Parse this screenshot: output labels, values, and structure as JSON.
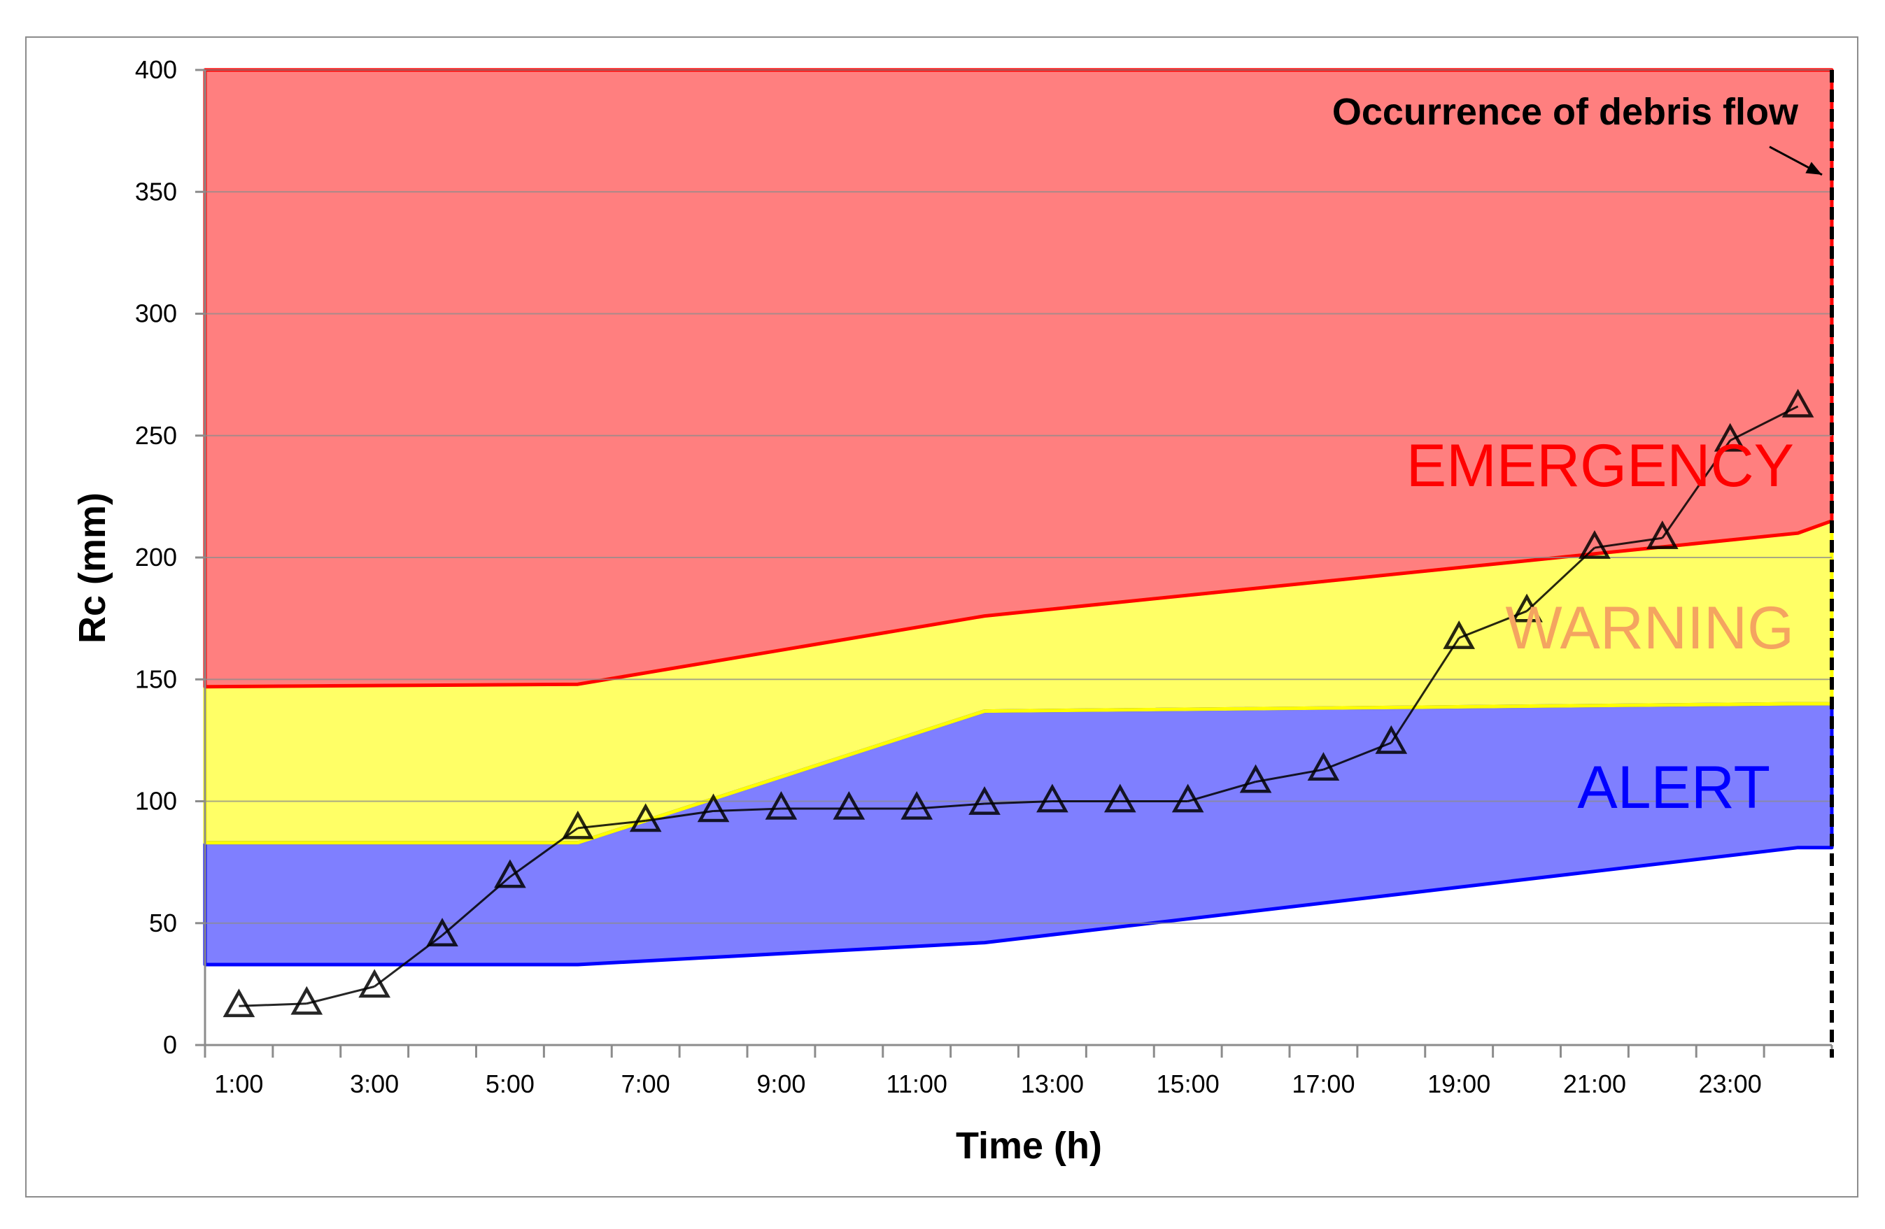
{
  "chart_data": {
    "type": "area",
    "title": "",
    "xlabel": "Time (h)",
    "ylabel": "Rc (mm)",
    "ylim": [
      0,
      400
    ],
    "yticks": [
      0,
      50,
      100,
      150,
      200,
      250,
      300,
      350,
      400
    ],
    "xlim": [
      0.5,
      24.5
    ],
    "xtick_labels": [
      "1:00",
      "3:00",
      "5:00",
      "7:00",
      "9:00",
      "11:00",
      "13:00",
      "15:00",
      "17:00",
      "19:00",
      "21:00",
      "23:00"
    ],
    "xtick_label_positions": [
      1,
      3,
      5,
      7,
      9,
      11,
      13,
      15,
      17,
      19,
      21,
      23
    ],
    "grid": true,
    "zones": [
      {
        "name": "ALERT",
        "fill": "#7f7fff",
        "edge": "#0000ff",
        "label_color": "#0000ff",
        "lower": {
          "x": [
            0.5,
            6,
            12,
            24,
            24.5
          ],
          "y": [
            33,
            33,
            42,
            81,
            81
          ]
        },
        "upper": {
          "x": [
            0.5,
            6,
            12,
            24,
            24.5
          ],
          "y": [
            83,
            83,
            137,
            140,
            140
          ]
        }
      },
      {
        "name": "WARNING",
        "fill": "#ffff66",
        "edge": "#ffff00",
        "label_color": "#f4a460",
        "lower": {
          "x": [
            0.5,
            6,
            12,
            24,
            24.5
          ],
          "y": [
            83,
            83,
            137,
            140,
            140
          ]
        },
        "upper": {
          "x": [
            0.5,
            6,
            12,
            24,
            24.5
          ],
          "y": [
            147,
            148,
            176,
            210,
            215
          ]
        }
      },
      {
        "name": "EMERGENCY",
        "fill": "#ff7f7f",
        "edge": "#ff0000",
        "label_color": "#ff0000",
        "lower": {
          "x": [
            0.5,
            6,
            12,
            24,
            24.5
          ],
          "y": [
            147,
            148,
            176,
            210,
            215
          ]
        },
        "upper": {
          "x": [
            0.5,
            24.5
          ],
          "y": [
            400,
            400
          ]
        }
      }
    ],
    "series": [
      {
        "name": "Rc",
        "marker": "triangle",
        "x": [
          1,
          2,
          3,
          4,
          5,
          6,
          7,
          8,
          9,
          10,
          11,
          12,
          13,
          14,
          15,
          16,
          17,
          18,
          19,
          20,
          21,
          22,
          23,
          24
        ],
        "values": [
          16,
          17,
          24,
          45,
          69,
          89,
          92,
          96,
          97,
          97,
          97,
          99,
          100,
          100,
          100,
          108,
          113,
          124,
          167,
          178,
          204,
          208,
          248,
          262
        ]
      }
    ],
    "annotations": [
      {
        "text": "Occurrence of debris flow",
        "points_to_x": 24.5,
        "points_to_y": 357
      }
    ],
    "event_line_x": 24.5
  }
}
